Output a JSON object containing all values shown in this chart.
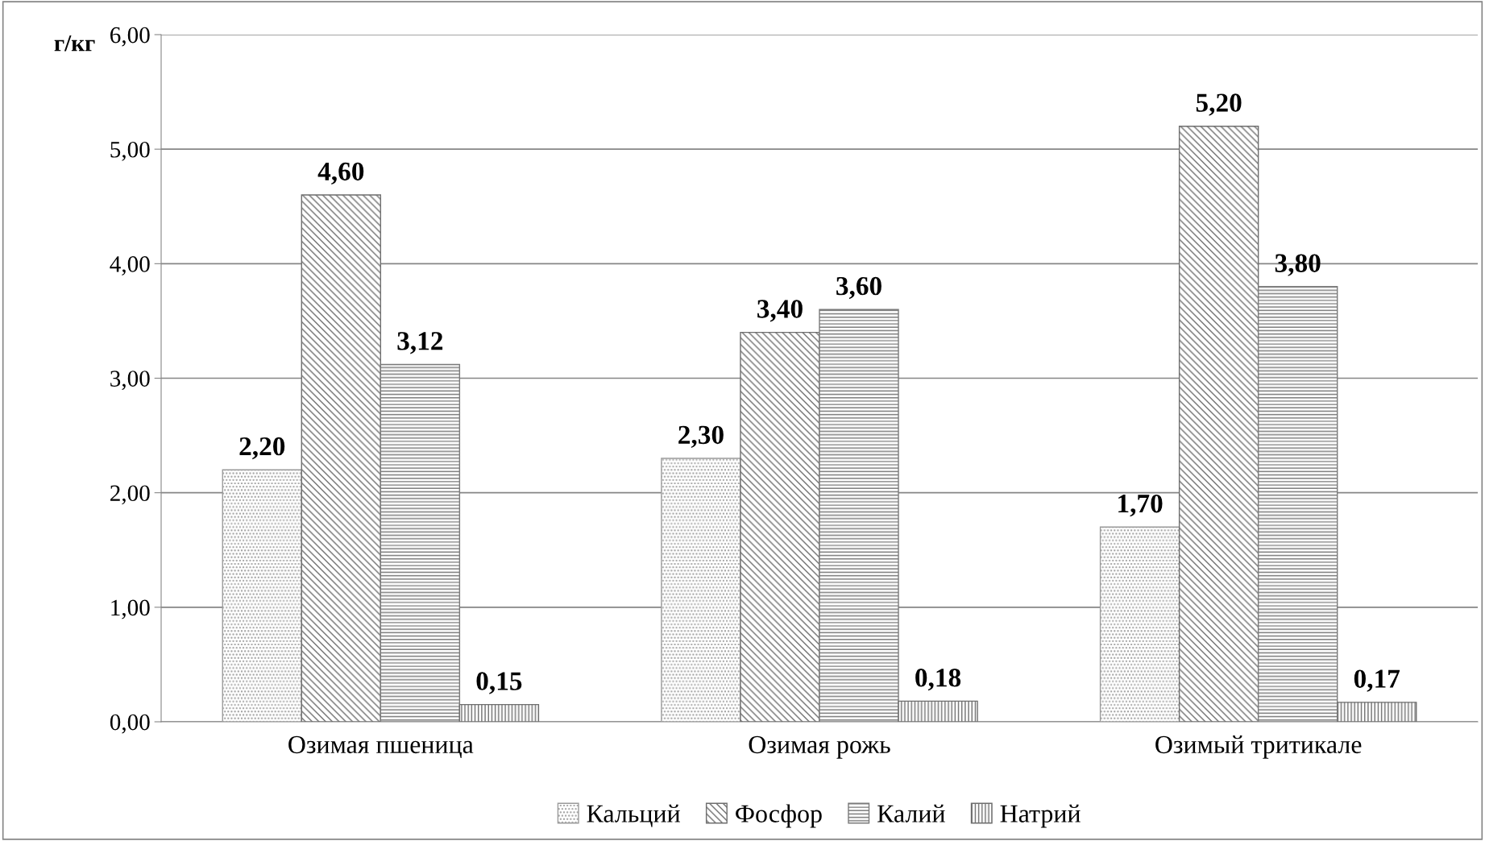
{
  "chart_data": {
    "type": "bar",
    "ylabel": "г/кг",
    "categories": [
      "Озимая пшеница",
      "Озимая рожь",
      "Озимый тритикале"
    ],
    "series": [
      {
        "name": "Кальций",
        "color": "#9a9a9a",
        "values": [
          2.2,
          2.3,
          1.7
        ],
        "value_labels": [
          "2,20",
          "2,30",
          "1,70"
        ]
      },
      {
        "name": "Фосфор",
        "color": "#6e6e6e",
        "values": [
          4.6,
          3.4,
          5.2
        ],
        "value_labels": [
          "4,60",
          "3,40",
          "5,20"
        ]
      },
      {
        "name": "Калий",
        "color": "#7a7a7a",
        "values": [
          3.12,
          3.6,
          3.8
        ],
        "value_labels": [
          "3,12",
          "3,60",
          "3,80"
        ]
      },
      {
        "name": "Натрий",
        "color": "#6e6e6e",
        "values": [
          0.15,
          0.18,
          0.17
        ],
        "value_labels": [
          "0,15",
          "0,18",
          "0,17"
        ]
      }
    ],
    "ylim": [
      0,
      6
    ],
    "yticks": [
      {
        "value": 0,
        "label": "0,00"
      },
      {
        "value": 1,
        "label": "1,00"
      },
      {
        "value": 2,
        "label": "2,00"
      },
      {
        "value": 3,
        "label": "3,00"
      },
      {
        "value": 4,
        "label": "4,00"
      },
      {
        "value": 5,
        "label": "5,00"
      },
      {
        "value": 6,
        "label": "6,00"
      }
    ],
    "grid": "y",
    "legend": "bottom"
  }
}
